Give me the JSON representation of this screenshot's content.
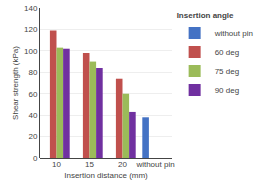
{
  "chart_data": {
    "type": "bar",
    "title": "Insertion angle",
    "xlabel": "Insertion distance (mm)",
    "ylabel": "Shear strength (kPa)",
    "categories": [
      "10",
      "15",
      "20",
      "without pin"
    ],
    "series": [
      {
        "name": "without pin",
        "color": "#4472c4",
        "values": [
          null,
          null,
          null,
          38
        ]
      },
      {
        "name": "60 deg",
        "color": "#c0504d",
        "values": [
          119,
          98,
          74,
          null
        ]
      },
      {
        "name": "75 deg",
        "color": "#9bbb59",
        "values": [
          103,
          90,
          60,
          null
        ]
      },
      {
        "name": "90 deg",
        "color": "#7030a0",
        "values": [
          102,
          84,
          43,
          null
        ]
      }
    ],
    "ylim": [
      0,
      140
    ],
    "yticks": [
      0,
      20,
      40,
      60,
      80,
      100,
      120,
      140
    ],
    "grid": true,
    "legend": "upper right"
  }
}
